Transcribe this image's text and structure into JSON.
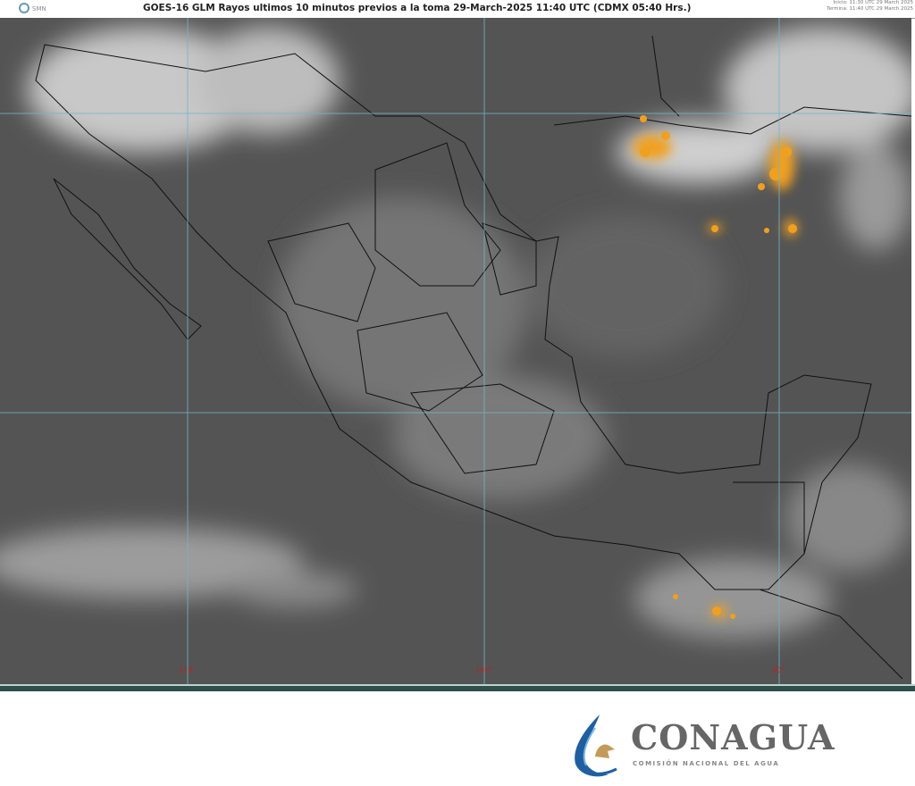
{
  "header": {
    "title": "GOES-16 GLM Rayos ultimos 10 minutos previos a la toma 29-March-2025 11:40 UTC  (CDMX  05:40 Hrs.)",
    "agency_logo": "SMN",
    "start_time": "Inicio: 11:30 UTC 29 March 2025",
    "end_time": "Termina: 11:40 UTC 29 March 2025"
  },
  "map": {
    "longitude_labels": [
      "110°",
      "100°",
      "90°"
    ],
    "lightning_color": "#f0a020",
    "grid_color": "#6fb8c8",
    "border_color": "#111111"
  },
  "footer": {
    "logo_name": "CONAGUA",
    "logo_subtitle": "COMISIÓN NACIONAL DEL AGUA",
    "logo_colors": [
      "#1f5fa0",
      "#7ab8e0",
      "#c49a5a"
    ]
  }
}
